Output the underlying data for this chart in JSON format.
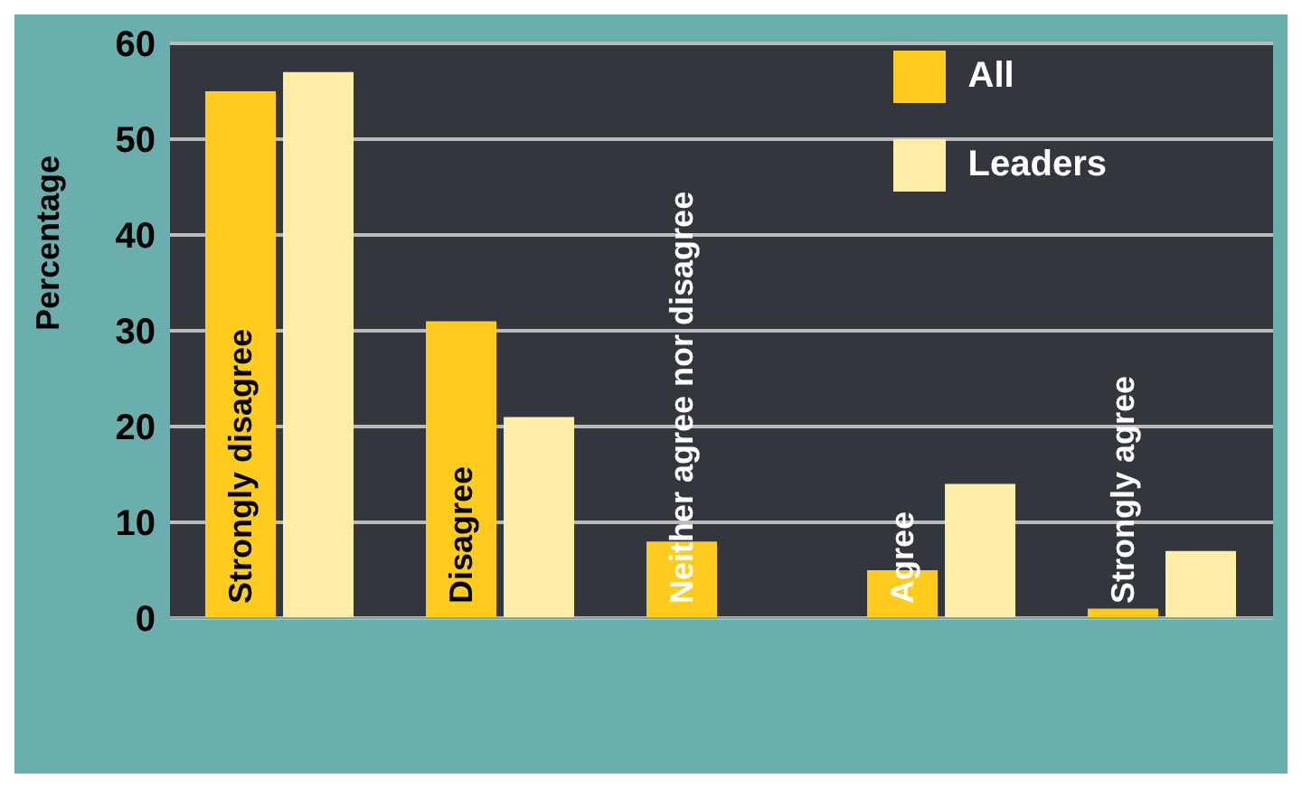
{
  "chart_data": {
    "type": "bar",
    "ylabel": "Percentage",
    "categories": [
      "Strongly disagree",
      "Disagree",
      "Neither agree nor disagree",
      "Agree",
      "Strongly agree"
    ],
    "series": [
      {
        "name": "All",
        "color": "#ffcc1d",
        "values": [
          55,
          31,
          8,
          5,
          1
        ]
      },
      {
        "name": "Leaders",
        "color": "#ffeeaa",
        "values": [
          57,
          21,
          0,
          14,
          7
        ]
      }
    ],
    "ylim": [
      0,
      60
    ],
    "yticks": [
      0,
      10,
      20,
      30,
      40,
      50,
      60
    ],
    "grid": "y",
    "legend": "top right"
  }
}
